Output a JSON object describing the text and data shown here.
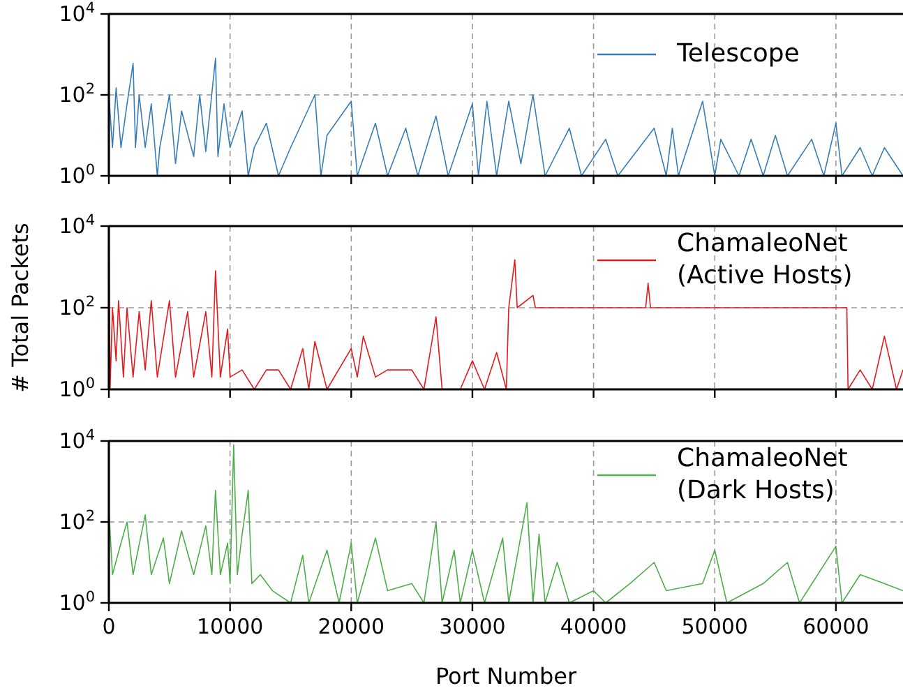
{
  "chart_data": [
    {
      "type": "line",
      "xlim": [
        0,
        65535
      ],
      "xticks": [
        0,
        10000,
        20000,
        30000,
        40000,
        50000,
        60000
      ],
      "ylim": [
        1,
        10000
      ],
      "yticks": [
        {
          "value": 1,
          "label": "10$^{0}$"
        },
        {
          "value": 100,
          "label": "10$^{2}$"
        },
        {
          "value": 10000,
          "label": "10$^{4}$"
        }
      ],
      "log": "y",
      "grid": true,
      "legend": "top right",
      "tick_labels": "y",
      "series": [
        {
          "name": "Telescope",
          "color": "#377eb8",
          "x": [
            0,
            300,
            600,
            1000,
            1500,
            2000,
            2200,
            2500,
            3000,
            3500,
            4000,
            4200,
            5000,
            5500,
            6000,
            7000,
            7500,
            8000,
            8800,
            9000,
            9500,
            10000,
            11000,
            11500,
            12000,
            13000,
            14000,
            15000,
            17000,
            17500,
            18000,
            20000,
            20500,
            22000,
            23000,
            24500,
            25500,
            27000,
            28000,
            30000,
            30500,
            31200,
            32000,
            33000,
            34000,
            35000,
            36000,
            38000,
            39000,
            41000,
            42000,
            45000,
            46000,
            46500,
            47000,
            49000,
            50000,
            50500,
            52000,
            53000,
            54000,
            55000,
            56000,
            58000,
            59000,
            60000,
            60500,
            62000,
            63000,
            64000,
            65535
          ],
          "values": [
            100,
            5,
            150,
            5,
            60,
            600,
            5,
            100,
            5,
            60,
            1,
            5,
            100,
            2,
            40,
            3,
            100,
            4,
            800,
            3,
            60,
            5,
            40,
            1,
            5,
            20,
            1,
            5,
            100,
            1,
            10,
            70,
            1,
            20,
            1,
            15,
            1,
            30,
            1,
            60,
            1,
            70,
            1,
            70,
            2,
            100,
            1,
            15,
            1,
            8,
            1,
            15,
            1,
            15,
            1,
            70,
            1,
            8,
            1,
            8,
            1,
            10,
            1,
            8,
            1,
            20,
            1,
            5,
            1,
            5,
            1
          ]
        }
      ]
    },
    {
      "type": "line",
      "xlim": [
        0,
        65535
      ],
      "xticks": [
        0,
        10000,
        20000,
        30000,
        40000,
        50000,
        60000
      ],
      "ylim": [
        1,
        10000
      ],
      "yticks": [
        {
          "value": 1,
          "label": "10$^{0}$"
        },
        {
          "value": 100,
          "label": "10$^{2}$"
        },
        {
          "value": 10000,
          "label": "10$^{4}$"
        }
      ],
      "log": "y",
      "grid": true,
      "legend": "top right",
      "tick_labels": "y",
      "ylabel": "# Total Packets",
      "series": [
        {
          "name": "ChamaleoNet\n(Active Hosts)",
          "color": "#e41a1c",
          "x": [
            0,
            100,
            300,
            600,
            800,
            1200,
            1500,
            2000,
            2500,
            3000,
            3500,
            4000,
            5000,
            5500,
            6500,
            7000,
            8000,
            8500,
            8800,
            9200,
            9800,
            10000,
            11000,
            12000,
            13000,
            14000,
            15000,
            16000,
            16500,
            17000,
            18000,
            20000,
            20500,
            21000,
            22000,
            23000,
            25000,
            26000,
            27000,
            27500,
            29000,
            30000,
            31000,
            32000,
            32800,
            33000,
            33500,
            33700,
            35000,
            35200,
            40000,
            44300,
            44500,
            44700,
            50000,
            55000,
            60900,
            61000,
            62000,
            63000,
            64000,
            65000,
            65535
          ],
          "values": [
            10000,
            1,
            100,
            5,
            150,
            2,
            100,
            2,
            80,
            3,
            150,
            2,
            150,
            2,
            80,
            2,
            80,
            2,
            800,
            2,
            30,
            2,
            3,
            1,
            3,
            3,
            1,
            10,
            1,
            15,
            1,
            10,
            2,
            20,
            2,
            3,
            3,
            1,
            60,
            1,
            1,
            5,
            1,
            8,
            1,
            100,
            1500,
            100,
            200,
            100,
            100,
            100,
            400,
            100,
            100,
            100,
            100,
            1,
            3,
            1,
            20,
            1,
            3
          ]
        }
      ]
    },
    {
      "type": "line",
      "xlim": [
        0,
        65535
      ],
      "xticks": [
        0,
        10000,
        20000,
        30000,
        40000,
        50000,
        60000
      ],
      "ylim": [
        1,
        10000
      ],
      "yticks": [
        {
          "value": 1,
          "label": "10$^{0}$"
        },
        {
          "value": 100,
          "label": "10$^{2}$"
        },
        {
          "value": 10000,
          "label": "10$^{4}$"
        }
      ],
      "log": "y",
      "grid": true,
      "legend": "top right",
      "xlabel": "Port Number",
      "series": [
        {
          "name": "ChamaleoNet\n(Dark Hosts)",
          "color": "#4daf4a",
          "x": [
            0,
            300,
            1000,
            1500,
            2000,
            3000,
            3500,
            4500,
            5000,
            6000,
            7000,
            8000,
            8500,
            8800,
            9200,
            9800,
            10000,
            10300,
            10600,
            11000,
            11500,
            11800,
            12500,
            13500,
            15000,
            16000,
            16500,
            18000,
            19000,
            20000,
            20500,
            22000,
            23000,
            25000,
            26000,
            27000,
            27500,
            28500,
            29000,
            30000,
            31000,
            32500,
            33000,
            34500,
            35000,
            35500,
            36000,
            37000,
            38000,
            40000,
            41000,
            43000,
            45000,
            46000,
            49000,
            50000,
            51000,
            54000,
            56000,
            57000,
            60000,
            60500,
            62000,
            64000,
            65535
          ],
          "values": [
            200,
            5,
            30,
            100,
            5,
            150,
            5,
            40,
            3,
            60,
            5,
            80,
            5,
            600,
            5,
            30,
            3,
            8000,
            5,
            50,
            600,
            3,
            5,
            2,
            1,
            15,
            1,
            20,
            1,
            30,
            1,
            40,
            2,
            3,
            1,
            100,
            1,
            20,
            1,
            20,
            1,
            40,
            1,
            300,
            1,
            50,
            1,
            10,
            1,
            2,
            1,
            3,
            10,
            2,
            3,
            20,
            1,
            3,
            10,
            1,
            25,
            1,
            5,
            3,
            2
          ]
        }
      ]
    }
  ]
}
